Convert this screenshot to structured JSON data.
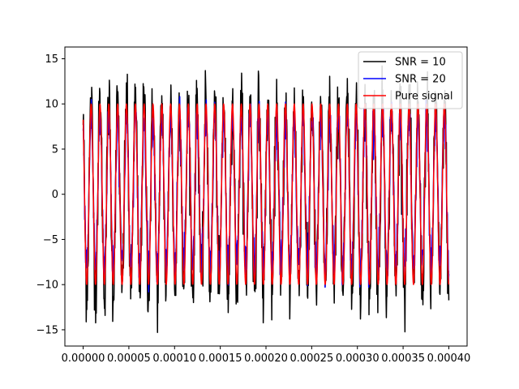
{
  "chart_data": {
    "type": "line",
    "title": "",
    "xlabel": "",
    "ylabel": "",
    "xlim": [
      -2e-05,
      0.00042
    ],
    "ylim": [
      -16.8,
      16.3
    ],
    "x_ticks": [
      0.0,
      5e-05,
      0.0001,
      0.00015,
      0.0002,
      0.00025,
      0.0003,
      0.00035,
      0.0004
    ],
    "x_tick_labels": [
      "0.00000",
      "0.00005",
      "0.00010",
      "0.00015",
      "0.00020",
      "0.00025",
      "0.00030",
      "0.00035",
      "0.00040"
    ],
    "y_ticks": [
      -15,
      -10,
      -5,
      0,
      5,
      10,
      15
    ],
    "y_tick_labels": [
      "−15",
      "−10",
      "−5",
      "0",
      "5",
      "10",
      "15"
    ],
    "grid": false,
    "legend_position": "top-right",
    "signal": {
      "amplitude": 10,
      "frequency_hz": 103500,
      "duration_s": 0.0004,
      "samples": 1200
    },
    "series": [
      {
        "name": "SNR = 10",
        "color": "#000000",
        "snr": 10,
        "peak_max": 14.2,
        "peak_min": -15.3
      },
      {
        "name": "SNR = 20",
        "color": "#0000ff",
        "snr": 20,
        "peak_max": 10.8,
        "peak_min": -10.8
      },
      {
        "name": "Pure signal",
        "color": "#ff0000",
        "snr": null,
        "peak_max": 10,
        "peak_min": -10
      }
    ]
  }
}
